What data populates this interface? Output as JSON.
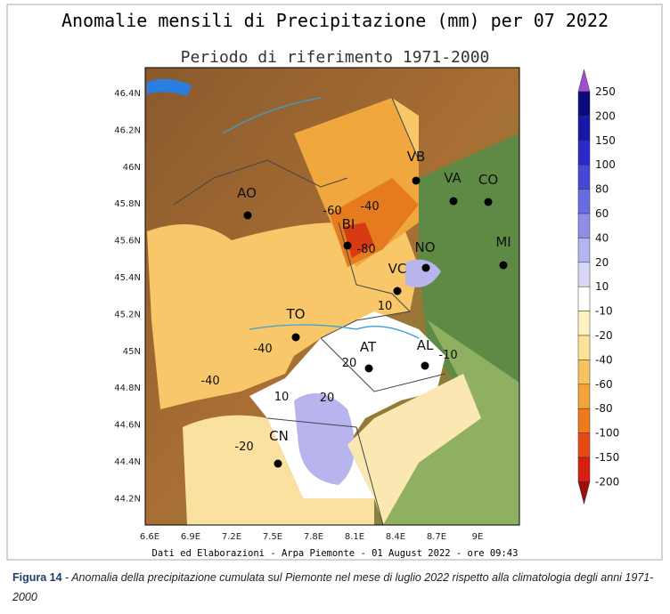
{
  "figure": {
    "title": "Anomalie mensili di Precipitazione (mm) per 07 2022",
    "subtitle": "Periodo di riferimento 1971-2000",
    "lat_labels": [
      "46.4N",
      "46.2N",
      "46N",
      "45.8N",
      "45.6N",
      "45.4N",
      "45.2N",
      "45N",
      "44.8N",
      "44.6N",
      "44.4N",
      "44.2N"
    ],
    "lon_labels": [
      "6.6E",
      "6.9E",
      "7.2E",
      "7.5E",
      "7.8E",
      "8.1E",
      "8.4E",
      "8.7E",
      "9E"
    ],
    "cities": [
      "AO",
      "BI",
      "VB",
      "VA",
      "CO",
      "NO",
      "MI",
      "VC",
      "TO",
      "AT",
      "AL",
      "CN"
    ],
    "contour_labels": [
      "-60",
      "-40",
      "-80",
      "10",
      "-40",
      "20",
      "-10",
      "-40",
      "10",
      "20",
      "-20"
    ],
    "colorbar": {
      "labels": [
        "250",
        "200",
        "150",
        "100",
        "80",
        "60",
        "40",
        "20",
        "10",
        "-10",
        "-20",
        "-40",
        "-60",
        "-80",
        "-100",
        "-150",
        "-200"
      ],
      "colors": [
        "#9f4fd0",
        "#0a0a7a",
        "#1818a8",
        "#2a2ac8",
        "#4848d8",
        "#6a6ae2",
        "#8e8eea",
        "#b4b4f0",
        "#d8d8f6",
        "#ffffff",
        "#fff2c0",
        "#fde29a",
        "#f8c25e",
        "#f3a33a",
        "#ee7a1e",
        "#e84a14",
        "#d81e10",
        "#a00d0d"
      ]
    },
    "credit": "Dati ed Elaborazioni - Arpa Piemonte - 01 August 2022 - ore 09:43"
  },
  "caption": {
    "label": "Figura 14",
    "text": " - Anomalia della precipitazione cumulata sul Piemonte nel mese di luglio 2022 rispetto alla climatologia degli anni 1971-2000"
  }
}
